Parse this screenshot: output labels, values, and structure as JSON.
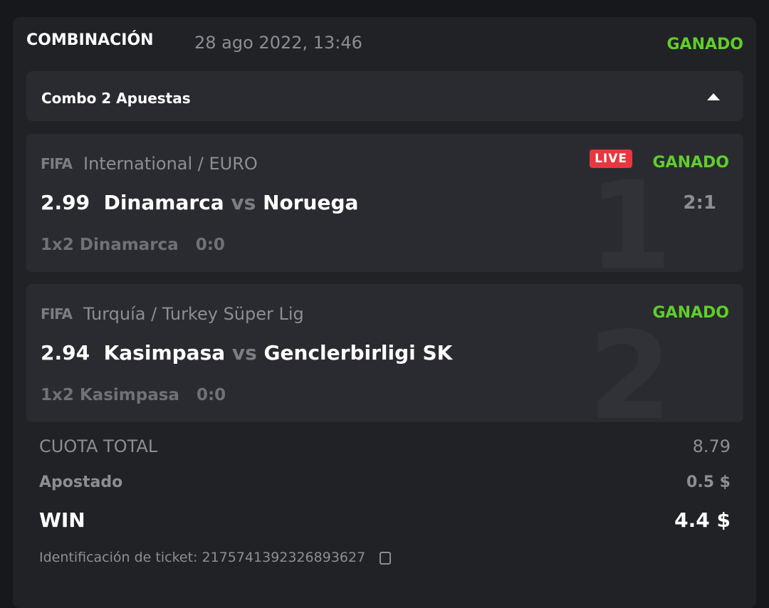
{
  "header": {
    "title": "COMBINACIÓN",
    "date": "28 ago 2022, 13:46",
    "status": "GANADO"
  },
  "combo": {
    "label": "Combo 2 Apuestas"
  },
  "bets": [
    {
      "icon": "FIFA",
      "league": "International / EURO",
      "odds": "2.99",
      "home": "Dinamarca",
      "vs": "vs",
      "away": "Noruega",
      "market": "1x2 Dinamarca",
      "ht": "0:0",
      "score": "2:1",
      "live": "LIVE",
      "status": "GANADO",
      "index": "1"
    },
    {
      "icon": "FIFA",
      "league": "Turquía / Turkey Süper Lig",
      "odds": "2.94",
      "home": "Kasimpasa",
      "vs": "vs",
      "away": "Genclerbirligi SK",
      "market": "1x2 Kasimpasa",
      "ht": "0:0",
      "status": "GANADO",
      "index": "2"
    }
  ],
  "summary": {
    "total_label": "CUOTA TOTAL",
    "total": "8.79",
    "stake_label": "Apostado",
    "stake": "0.5 $",
    "win_label": "WIN",
    "win": "4.4 $"
  },
  "ticket": {
    "label": "Identificación de ticket:",
    "id": "2175741392326893627"
  },
  "colors": {
    "win": "#5fce2a",
    "live": "#e9363f"
  }
}
